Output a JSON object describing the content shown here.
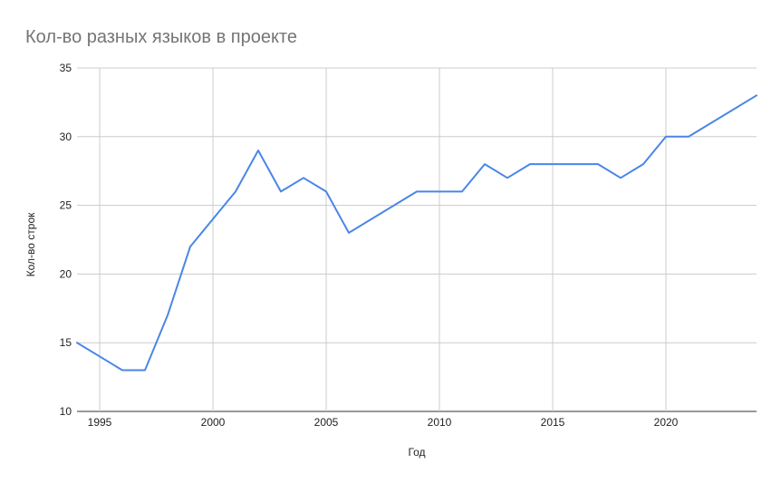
{
  "chart_data": {
    "type": "line",
    "title": "Кол-во разных языков в проекте",
    "xlabel": "Год",
    "ylabel": "Кол-во строк",
    "xlim": [
      1994,
      2024
    ],
    "ylim": [
      10,
      35
    ],
    "x_ticks": [
      "1995",
      "2000",
      "2005",
      "2010",
      "2015",
      "2020"
    ],
    "y_ticks": [
      "10",
      "15",
      "20",
      "25",
      "30",
      "35"
    ],
    "grid": true,
    "legend": "none",
    "series": [
      {
        "color": "#4a86e8",
        "points": [
          [
            1994,
            15
          ],
          [
            1996,
            13
          ],
          [
            1997,
            13
          ],
          [
            1998,
            17
          ],
          [
            1999,
            22
          ],
          [
            2001,
            26
          ],
          [
            2002,
            29
          ],
          [
            2003,
            26
          ],
          [
            2004,
            27
          ],
          [
            2005,
            26
          ],
          [
            2006,
            23
          ],
          [
            2009,
            26
          ],
          [
            2011,
            26
          ],
          [
            2012,
            28
          ],
          [
            2013,
            27
          ],
          [
            2014,
            28
          ],
          [
            2017,
            28
          ],
          [
            2018,
            27
          ],
          [
            2019,
            28
          ],
          [
            2020,
            30
          ],
          [
            2021,
            30
          ],
          [
            2024,
            33
          ]
        ]
      }
    ]
  }
}
